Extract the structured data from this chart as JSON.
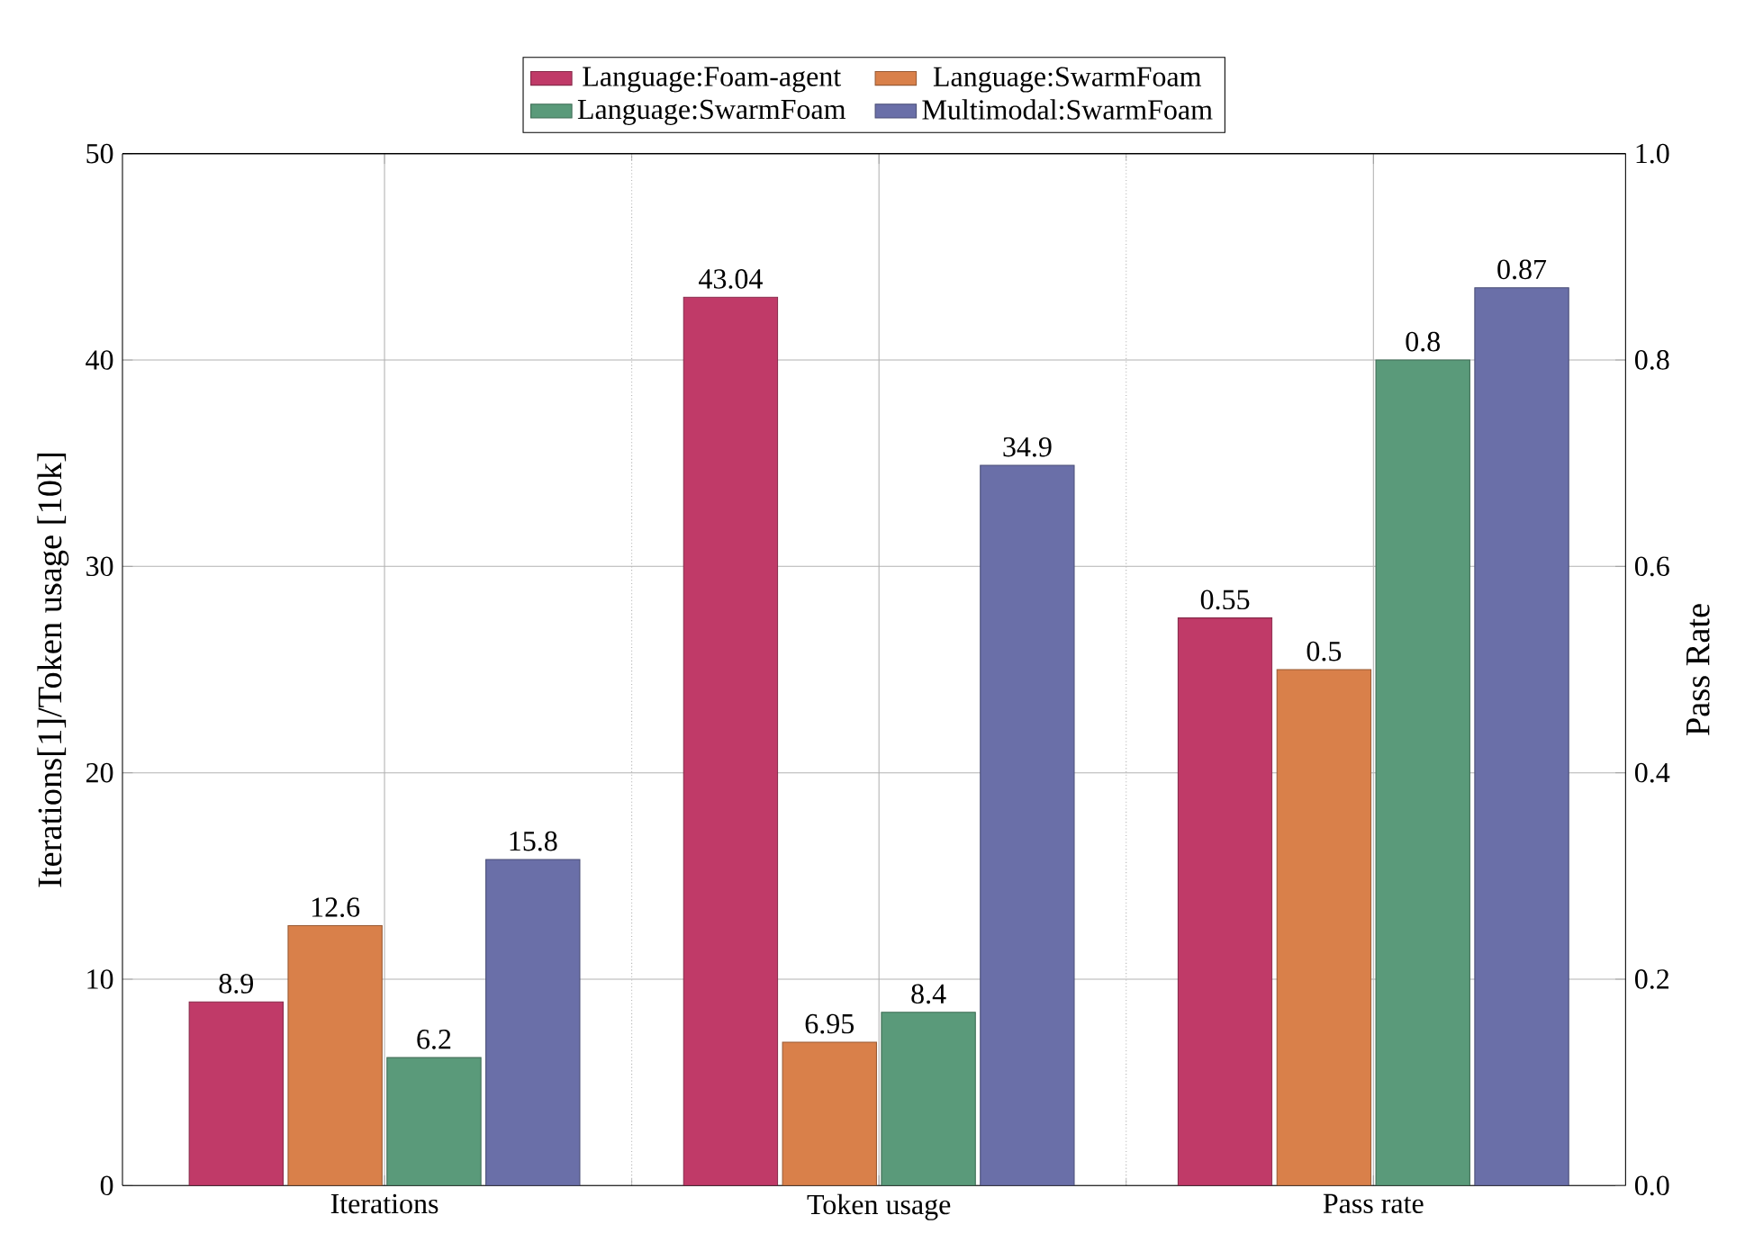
{
  "chart_data": {
    "type": "bar",
    "xlabel": null,
    "ylabel": "Iterations[1]/Token usage [10k]",
    "y2label": "Pass Rate",
    "categories": [
      "Iterations",
      "Token usage",
      "Pass rate"
    ],
    "series": [
      {
        "name": "Language:Foam-agent",
        "color": "#c03a68",
        "values": [
          8.9,
          43.04,
          null
        ]
      },
      {
        "name": "Language:SwarmFoam",
        "color": "#d9804a",
        "values": [
          12.6,
          6.95,
          null
        ]
      },
      {
        "name": "Language:SwarmFoam",
        "color": "#5a9a7a",
        "values": [
          6.2,
          8.4,
          null
        ]
      },
      {
        "name": "Multimodal:SwarmFoam",
        "color": "#6a6fa8",
        "values": [
          15.8,
          34.9,
          null
        ]
      },
      {
        "color": "#c03a68",
        "values": [
          null,
          null,
          0.55
        ],
        "axis": "y2"
      },
      {
        "color": "#d9804a",
        "values": [
          null,
          null,
          0.5
        ],
        "axis": "y2"
      },
      {
        "color": "#5a9a7a",
        "values": [
          null,
          null,
          0.8
        ],
        "axis": "y2"
      },
      {
        "color": "#6a6fa8",
        "values": [
          null,
          null,
          0.87
        ],
        "axis": "y2"
      }
    ],
    "ylim": [
      0,
      50
    ],
    "yticks": [
      0,
      10,
      20,
      30,
      40,
      50
    ],
    "y2lim": [
      0,
      1
    ],
    "y2ticks": [
      {
        "value": 0,
        "label": "0.0"
      },
      {
        "value": 0.2,
        "label": "0.2"
      },
      {
        "value": 0.4,
        "label": "0.4"
      },
      {
        "value": 0.6,
        "label": "0.6"
      },
      {
        "value": 0.8,
        "label": "0.8"
      },
      {
        "value": 1,
        "label": "1.0"
      }
    ],
    "data_labels": true,
    "grid": true,
    "legend": "top"
  }
}
